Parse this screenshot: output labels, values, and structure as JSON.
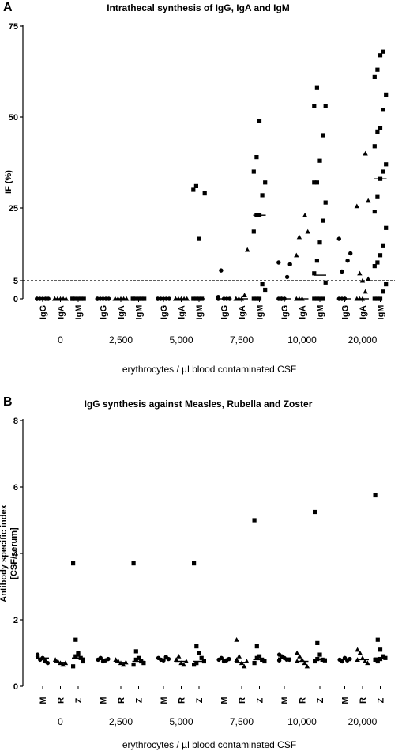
{
  "chart_data": [
    {
      "panel": "A",
      "type": "scatter",
      "title": "Intrathecal synthesis of IgG, IgA and IgM",
      "ylabel": "IF (%)",
      "xlabel": "erythrocytes / µl blood contaminated CSF",
      "ylim": [
        0,
        75
      ],
      "yticks": [
        "0",
        "5",
        "25",
        "50",
        "75"
      ],
      "ytick_values": [
        0,
        5,
        25,
        50,
        75
      ],
      "reference_line": 5,
      "groups": [
        "0",
        "2,500",
        "5,000",
        "7,500",
        "10,000",
        "20,000"
      ],
      "series": [
        {
          "name": "IgG",
          "marker": "circle",
          "values": [
            [
              0,
              0,
              0,
              0,
              0,
              0
            ],
            [
              0,
              0,
              0,
              0,
              0,
              0
            ],
            [
              0,
              0,
              0,
              0,
              0,
              0
            ],
            [
              0.5,
              7.8,
              0,
              0,
              0,
              0
            ],
            [
              0,
              0,
              0,
              6,
              9.5,
              10,
              0,
              0
            ],
            [
              0,
              0,
              0,
              10.5,
              12.5,
              16.5,
              7.5,
              0
            ]
          ],
          "medians": [
            0,
            0,
            0,
            0,
            0,
            0
          ]
        },
        {
          "name": "IgA",
          "marker": "triangle",
          "values": [
            [
              0,
              0,
              0,
              0,
              0,
              0
            ],
            [
              0,
              0,
              0,
              0,
              0,
              0
            ],
            [
              0,
              0,
              0,
              0,
              0,
              0
            ],
            [
              0,
              0,
              0,
              1,
              13.5,
              0
            ],
            [
              0,
              0,
              0,
              23,
              18.5,
              12,
              17
            ],
            [
              0,
              0,
              0,
              40,
              27,
              25.5,
              7,
              5,
              2,
              5.5
            ]
          ],
          "medians": [
            0,
            0,
            0,
            0,
            0,
            0
          ]
        },
        {
          "name": "IgM",
          "marker": "square",
          "values": [
            [
              0,
              0,
              0,
              0,
              0,
              0
            ],
            [
              0,
              0,
              0,
              0,
              0,
              0
            ],
            [
              0,
              0,
              0,
              0,
              29,
              30,
              31,
              16.5
            ],
            [
              0,
              0,
              0,
              4,
              2.5,
              18.5,
              23,
              23,
              28.5,
              32,
              35,
              39,
              49
            ],
            [
              0,
              0,
              0,
              0,
              4.5,
              7,
              10.5,
              15.5,
              21.5,
              26.5,
              32,
              32,
              38,
              45,
              53,
              53,
              58
            ],
            [
              0,
              0,
              0,
              2,
              4,
              9,
              10,
              12,
              14.5,
              19.5,
              24,
              28,
              33,
              35,
              37,
              42,
              46,
              47,
              52,
              56,
              61,
              63,
              67,
              68
            ]
          ],
          "medians": [
            0,
            0,
            0,
            23,
            6.5,
            33
          ]
        }
      ]
    },
    {
      "panel": "B",
      "type": "scatter",
      "title": "IgG synthesis against Measles, Rubella and Zoster",
      "ylabel": "Antibody specific index [CSF/serum]",
      "ylabel_line1": "Antibody specific index",
      "ylabel_line2": "[CSF/serum]",
      "xlabel": "erythrocytes / µl blood contaminated CSF",
      "ylim": [
        0,
        8
      ],
      "yticks": [
        "0",
        "2",
        "4",
        "6",
        "8"
      ],
      "ytick_values": [
        0,
        2,
        4,
        6,
        8
      ],
      "groups": [
        "0",
        "2,500",
        "5,000",
        "7,500",
        "10,000",
        "20,000"
      ],
      "series": [
        {
          "name": "M",
          "marker": "circle",
          "values": [
            [
              0.9,
              0.8,
              0.85,
              0.75,
              0.7,
              0.95
            ],
            [
              0.8,
              0.85,
              0.75,
              0.78,
              0.82
            ],
            [
              0.85,
              0.8,
              0.78,
              0.88,
              0.82
            ],
            [
              0.8,
              0.85,
              0.75,
              0.78,
              0.82
            ],
            [
              0.95,
              0.9,
              0.85,
              0.8,
              0.8,
              0.78
            ],
            [
              0.8,
              0.75,
              0.85,
              0.78,
              0.82
            ]
          ],
          "medians": [
            0.85,
            0.8,
            0.82,
            0.8,
            0.85,
            0.8
          ]
        },
        {
          "name": "R",
          "marker": "triangle",
          "values": [
            [
              0.8,
              0.75,
              0.7,
              0.65,
              0.7
            ],
            [
              0.8,
              0.75,
              0.7,
              0.65,
              0.72
            ],
            [
              0.8,
              0.9,
              0.7,
              0.65,
              0.75
            ],
            [
              1.4,
              0.9,
              0.7,
              0.6,
              0.75,
              0.8
            ],
            [
              1.0,
              0.9,
              0.8,
              0.7,
              0.6,
              0.75
            ],
            [
              1.1,
              1.0,
              0.85,
              0.75,
              0.7,
              0.8
            ]
          ],
          "medians": [
            0.72,
            0.72,
            0.75,
            0.72,
            0.75,
            0.8
          ]
        },
        {
          "name": "Z",
          "marker": "square",
          "values": [
            [
              3.7,
              1.4,
              1.0,
              0.85,
              0.75,
              0.6,
              0.9,
              0.95
            ],
            [
              3.7,
              1.05,
              0.85,
              0.75,
              0.7,
              0.65,
              0.8
            ],
            [
              3.7,
              1.2,
              1.0,
              0.85,
              0.75,
              0.65,
              0.7
            ],
            [
              5.0,
              1.2,
              0.9,
              0.8,
              0.75,
              0.7,
              0.85
            ],
            [
              5.25,
              1.3,
              0.95,
              0.8,
              0.78,
              0.75,
              0.82
            ],
            [
              5.75,
              1.4,
              1.1,
              0.9,
              0.85,
              0.8,
              0.75,
              0.82
            ]
          ],
          "medians": [
            0.85,
            0.75,
            0.75,
            0.8,
            0.8,
            0.85
          ]
        }
      ]
    }
  ]
}
